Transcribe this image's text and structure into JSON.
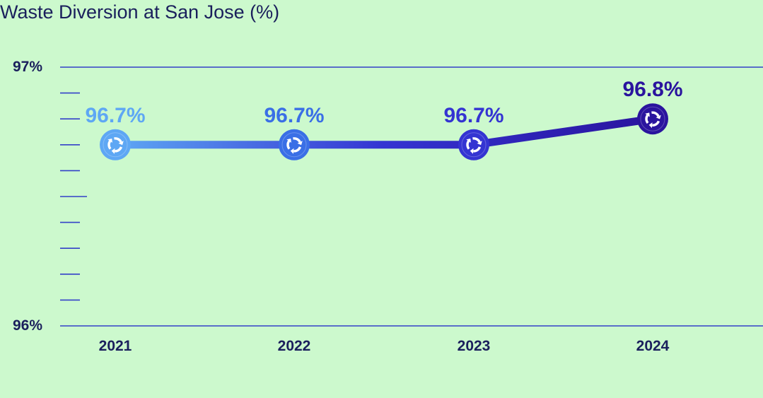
{
  "title": "Waste Diversion at San Jose (%)",
  "chart_data": {
    "type": "line",
    "title": "Waste Diversion at San Jose (%)",
    "xlabel": "",
    "ylabel": "",
    "categories": [
      "2021",
      "2022",
      "2023",
      "2024"
    ],
    "values": [
      96.7,
      96.7,
      96.7,
      96.8
    ],
    "data_labels": [
      "96.7%",
      "96.7%",
      "96.7%",
      "96.8%"
    ],
    "ylim": [
      96,
      97
    ],
    "y_tick_labels": [
      "96%",
      "97%"
    ],
    "minor_tick_count": 9,
    "point_icon": "recycle-icon",
    "colors": {
      "background": "#ccf9cd",
      "axis": "#3340c8",
      "text": "#1a1f5c",
      "point_colors": [
        "#5ea7f4",
        "#3a6fe6",
        "#3434d2",
        "#2a149e"
      ]
    }
  }
}
